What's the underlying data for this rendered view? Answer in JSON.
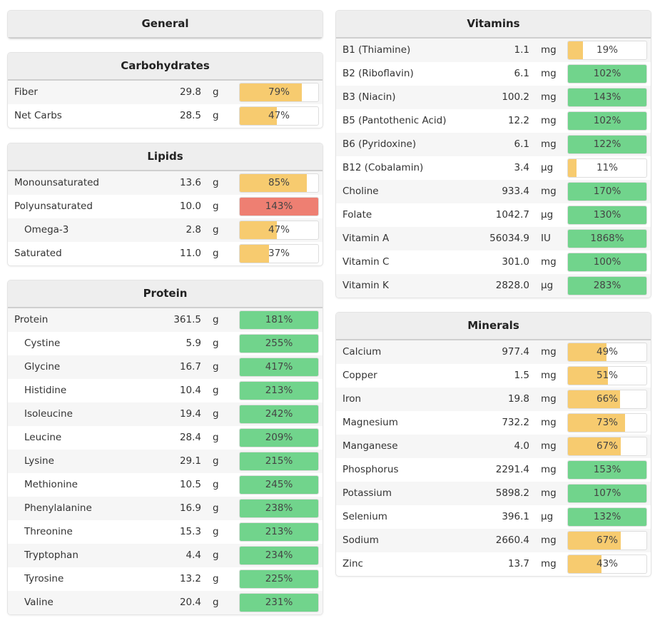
{
  "colors": {
    "low": "#f7cb6f",
    "ok": "#71d48c",
    "high": "#ee7f72"
  },
  "panels": [
    {
      "id": "general",
      "title": "General",
      "rows": []
    },
    {
      "id": "carbohydrates",
      "title": "Carbohydrates",
      "rows": [
        {
          "name": "Fiber",
          "value": "29.8",
          "unit": "g",
          "pct": 79,
          "label": "79%",
          "status": "low"
        },
        {
          "name": "Net Carbs",
          "value": "28.5",
          "unit": "g",
          "pct": 47,
          "label": "47%",
          "status": "low"
        }
      ]
    },
    {
      "id": "lipids",
      "title": "Lipids",
      "rows": [
        {
          "name": "Monounsaturated",
          "value": "13.6",
          "unit": "g",
          "pct": 85,
          "label": "85%",
          "status": "low"
        },
        {
          "name": "Polyunsaturated",
          "value": "10.0",
          "unit": "g",
          "pct": 143,
          "label": "143%",
          "status": "high"
        },
        {
          "name": "Omega-3",
          "value": "2.8",
          "unit": "g",
          "pct": 47,
          "label": "47%",
          "status": "low",
          "sub": true
        },
        {
          "name": "Saturated",
          "value": "11.0",
          "unit": "g",
          "pct": 37,
          "label": "37%",
          "status": "low"
        }
      ]
    },
    {
      "id": "protein",
      "title": "Protein",
      "rows": [
        {
          "name": "Protein",
          "value": "361.5",
          "unit": "g",
          "pct": 181,
          "label": "181%",
          "status": "ok"
        },
        {
          "name": "Cystine",
          "value": "5.9",
          "unit": "g",
          "pct": 255,
          "label": "255%",
          "status": "ok",
          "sub": true
        },
        {
          "name": "Glycine",
          "value": "16.7",
          "unit": "g",
          "pct": 417,
          "label": "417%",
          "status": "ok",
          "sub": true
        },
        {
          "name": "Histidine",
          "value": "10.4",
          "unit": "g",
          "pct": 213,
          "label": "213%",
          "status": "ok",
          "sub": true
        },
        {
          "name": "Isoleucine",
          "value": "19.4",
          "unit": "g",
          "pct": 242,
          "label": "242%",
          "status": "ok",
          "sub": true
        },
        {
          "name": "Leucine",
          "value": "28.4",
          "unit": "g",
          "pct": 209,
          "label": "209%",
          "status": "ok",
          "sub": true
        },
        {
          "name": "Lysine",
          "value": "29.1",
          "unit": "g",
          "pct": 215,
          "label": "215%",
          "status": "ok",
          "sub": true
        },
        {
          "name": "Methionine",
          "value": "10.5",
          "unit": "g",
          "pct": 245,
          "label": "245%",
          "status": "ok",
          "sub": true
        },
        {
          "name": "Phenylalanine",
          "value": "16.9",
          "unit": "g",
          "pct": 238,
          "label": "238%",
          "status": "ok",
          "sub": true
        },
        {
          "name": "Threonine",
          "value": "15.3",
          "unit": "g",
          "pct": 213,
          "label": "213%",
          "status": "ok",
          "sub": true
        },
        {
          "name": "Tryptophan",
          "value": "4.4",
          "unit": "g",
          "pct": 234,
          "label": "234%",
          "status": "ok",
          "sub": true
        },
        {
          "name": "Tyrosine",
          "value": "13.2",
          "unit": "g",
          "pct": 225,
          "label": "225%",
          "status": "ok",
          "sub": true
        },
        {
          "name": "Valine",
          "value": "20.4",
          "unit": "g",
          "pct": 231,
          "label": "231%",
          "status": "ok",
          "sub": true
        }
      ]
    },
    {
      "id": "vitamins",
      "title": "Vitamins",
      "rows": [
        {
          "name": "B1 (Thiamine)",
          "value": "1.1",
          "unit": "mg",
          "pct": 19,
          "label": "19%",
          "status": "low"
        },
        {
          "name": "B2 (Riboflavin)",
          "value": "6.1",
          "unit": "mg",
          "pct": 102,
          "label": "102%",
          "status": "ok"
        },
        {
          "name": "B3 (Niacin)",
          "value": "100.2",
          "unit": "mg",
          "pct": 143,
          "label": "143%",
          "status": "ok"
        },
        {
          "name": "B5 (Pantothenic Acid)",
          "value": "12.2",
          "unit": "mg",
          "pct": 102,
          "label": "102%",
          "status": "ok"
        },
        {
          "name": "B6 (Pyridoxine)",
          "value": "6.1",
          "unit": "mg",
          "pct": 122,
          "label": "122%",
          "status": "ok"
        },
        {
          "name": "B12 (Cobalamin)",
          "value": "3.4",
          "unit": "µg",
          "pct": 11,
          "label": "11%",
          "status": "low"
        },
        {
          "name": "Choline",
          "value": "933.4",
          "unit": "mg",
          "pct": 170,
          "label": "170%",
          "status": "ok"
        },
        {
          "name": "Folate",
          "value": "1042.7",
          "unit": "µg",
          "pct": 130,
          "label": "130%",
          "status": "ok"
        },
        {
          "name": "Vitamin A",
          "value": "56034.9",
          "unit": "IU",
          "pct": 1868,
          "label": "1868%",
          "status": "ok"
        },
        {
          "name": "Vitamin C",
          "value": "301.0",
          "unit": "mg",
          "pct": 100,
          "label": "100%",
          "status": "ok"
        },
        {
          "name": "Vitamin K",
          "value": "2828.0",
          "unit": "µg",
          "pct": 283,
          "label": "283%",
          "status": "ok"
        }
      ]
    },
    {
      "id": "minerals",
      "title": "Minerals",
      "rows": [
        {
          "name": "Calcium",
          "value": "977.4",
          "unit": "mg",
          "pct": 49,
          "label": "49%",
          "status": "low"
        },
        {
          "name": "Copper",
          "value": "1.5",
          "unit": "mg",
          "pct": 51,
          "label": "51%",
          "status": "low"
        },
        {
          "name": "Iron",
          "value": "19.8",
          "unit": "mg",
          "pct": 66,
          "label": "66%",
          "status": "low"
        },
        {
          "name": "Magnesium",
          "value": "732.2",
          "unit": "mg",
          "pct": 73,
          "label": "73%",
          "status": "low"
        },
        {
          "name": "Manganese",
          "value": "4.0",
          "unit": "mg",
          "pct": 67,
          "label": "67%",
          "status": "low"
        },
        {
          "name": "Phosphorus",
          "value": "2291.4",
          "unit": "mg",
          "pct": 153,
          "label": "153%",
          "status": "ok"
        },
        {
          "name": "Potassium",
          "value": "5898.2",
          "unit": "mg",
          "pct": 107,
          "label": "107%",
          "status": "ok"
        },
        {
          "name": "Selenium",
          "value": "396.1",
          "unit": "µg",
          "pct": 132,
          "label": "132%",
          "status": "ok"
        },
        {
          "name": "Sodium",
          "value": "2660.4",
          "unit": "mg",
          "pct": 67,
          "label": "67%",
          "status": "low"
        },
        {
          "name": "Zinc",
          "value": "13.7",
          "unit": "mg",
          "pct": 43,
          "label": "43%",
          "status": "low"
        }
      ]
    }
  ]
}
